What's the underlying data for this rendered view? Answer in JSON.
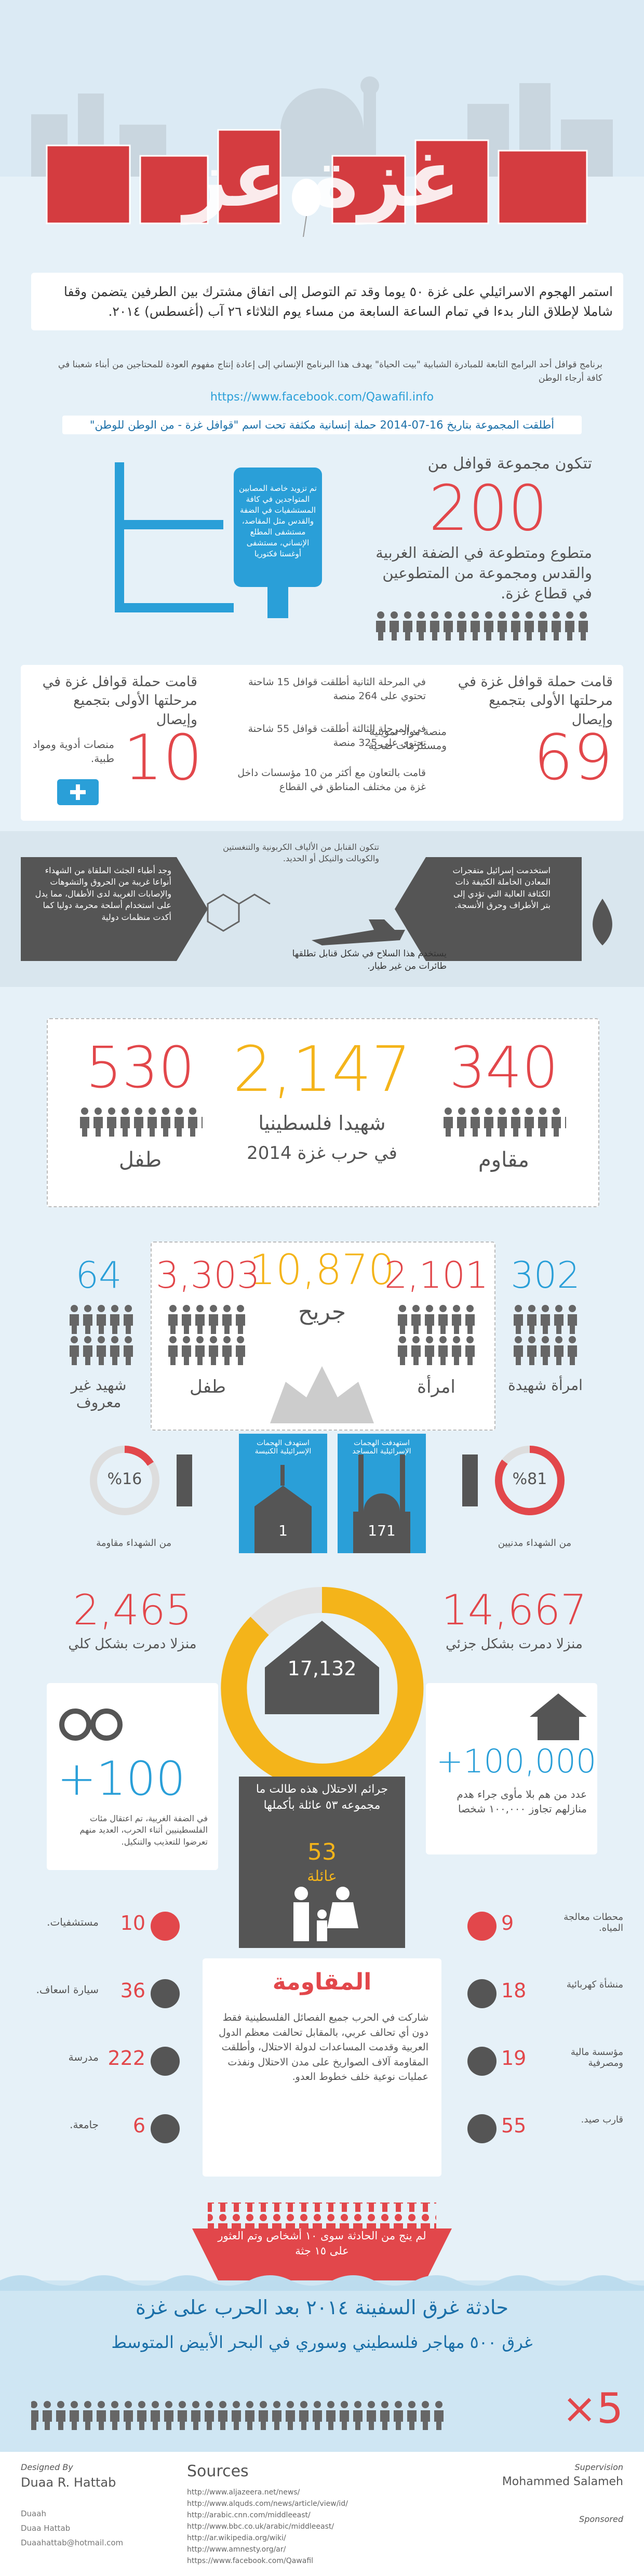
{
  "header": {
    "title": "غزة عز"
  },
  "intro": {
    "text": "استمر الهجوم الاسرائيلي على غزة ٥٠ يوما وقد تم التوصل إلى اتفاق مشترك بين الطرفين يتضمن وقفا شاملا لإطلاق النار بدءا في تمام الساعة السابعة من مساء يوم الثلاثاء ٢٦ آب (أغسطس) ٢٠١٤.",
    "program": "برنامج قوافل أحد البرامج التابعة للمبادرة الشبابية \"بيت الحياة\" يهدف هذا البرنامج الإنساني إلى إعادة إنتاج مفهوم العودة للمحتاجين من أبناء شعبنا في كافة أرجاء الوطن",
    "link": "https://www.facebook.com/Qawafil.info"
  },
  "campaign": {
    "text": "أطلقت المجموعة بتاريخ 16-07-2014 حملة إنسانية مكثفة تحت اسم \"قوافل غزة - من الوطن للوطن\""
  },
  "volunteers": {
    "lead": "تتكون مجموعة قوافل من",
    "number": "200",
    "text": "متطوع ومتطوعة في الضفة الغربية والقدس ومجموعة من المتطوعين في قطاع غزة.",
    "hospitals": "تم تزويد خاصة المصابين المتواجدين في كافة المستشفيات في الضفة والقدس مثل المقاصد، مستشفى المطلع الإنساني، مستشفى أوغستا فكتوريا"
  },
  "aid": {
    "right": {
      "lead": "قامت حملة قوافل غزة في مرحلتها الأولى بتجميع وإيصال",
      "number": "69",
      "text": "منصة مواد تموينية ومستلزمات صحية"
    },
    "left": {
      "lead": "قامت حملة قوافل غزة في مرحلتها الأولى بتجميع وإيصال",
      "number": "10",
      "text": "منصات أدوية ومواد طبية."
    },
    "phase2": "في المرحلة الثانية أطلقت قوافل 15 شاحنة تحتوي على 264 منصة",
    "phase3": "في المرحلة الثالثة أطلقت قوافل 55 شاحنة تحتوي على 325 منصة",
    "partners": "قامت بالتعاون مع أكثر من 10 مؤسسات داخل غزة من مختلف المناطق في القطاع"
  },
  "weapons": {
    "bodies": "وجد أطباء الجثث الملقاة من الشهداء أنواعا غريبة من الحروق والتشوهات والإصابات الغريبة لدى الأطفال، مما يدل على استخدام أسلحة محرمة دوليا كما أكدت منظمات دولية",
    "metals": "استخدمت إسرائيل متفجرات المعادن الخاملة الكثيفة ذات الكثافة العالية التي تؤدي إلى بتر الأطراف وحرق الأنسجة.",
    "composition": "تتكون القنابل من الألياف الكربونية والتنغستين والكوبالت والنيكل أو الحديد.",
    "drones": "يستخدم هذا السلاح في شكل قنابل تطلقها طائرات من غير طيار."
  },
  "martyrs": {
    "children": {
      "number": "530",
      "label": "طفل"
    },
    "total": {
      "number": "2,147",
      "label": "شهيدا فلسطينيا",
      "sub": "في حرب غزة 2014"
    },
    "fighters": {
      "number": "340",
      "label": "مقاوم"
    }
  },
  "wounded": {
    "unknown": {
      "number": "64",
      "label": "شهيد غير معروف"
    },
    "children": {
      "number": "3,303",
      "label": "طفل"
    },
    "total": {
      "number": "10,870",
      "label": "جريح"
    },
    "women": {
      "number": "2,101",
      "label": "امرأة"
    },
    "women_martyrs": {
      "number": "302",
      "label": "امرأة شهيدة"
    }
  },
  "percent": {
    "resistance": {
      "value": "%16",
      "label": "من الشهداء مقاومة"
    },
    "civilians": {
      "value": "%81",
      "label": "من الشهداء مدنيين"
    }
  },
  "worship": {
    "churches": {
      "label": "استهدف الهجمات الإسرائيلية الكنيسة",
      "number": "1"
    },
    "mosques": {
      "label": "استهدفت الهجمات الإسرائيلية المساجد",
      "number": "171"
    }
  },
  "homes": {
    "total": "17,132",
    "full": {
      "number": "2,465",
      "label": "منزلا دمرت بشكل كلي"
    },
    "partial": {
      "number": "14,667",
      "label": "منزلا دمرت بشكل جزئي"
    }
  },
  "prisoners": {
    "number": "+100",
    "text": "في الضفة الغربية، تم اعتقال مئات الفلسطينيين أثناء الحرب، العديد منهم تعرضوا للتعذيب والتنكيل."
  },
  "homeless": {
    "number": "+100,000",
    "text": "عدد من هم بلا مأوى جراء هدم منازلهم تجاوز ١٠٠,٠٠٠ شخصا"
  },
  "families": {
    "text": "جرائم الاحتلال هذه طالت ما مجموعه ٥٣ عائلة بأكملها",
    "number": "53",
    "unit": "عائلة"
  },
  "infrastructure": {
    "left": [
      {
        "number": "10",
        "label": "مستشفيات."
      },
      {
        "number": "36",
        "label": "سيارة اسعاف."
      },
      {
        "number": "222",
        "label": "مدرسة"
      },
      {
        "number": "6",
        "label": "جامعة."
      }
    ],
    "right": [
      {
        "number": "9",
        "label": "محطات معالجة المياه."
      },
      {
        "number": "18",
        "label": "منشأة كهربائية"
      },
      {
        "number": "19",
        "label": "مؤسسة مالية ومصرفية"
      },
      {
        "number": "55",
        "label": "قارب صيد."
      }
    ]
  },
  "resistance": {
    "title": "المقاومة",
    "text": "شاركت في الحرب جميع الفصائل الفلسطينية فقط دون أي تحالف عربي، بالمقابل تحالفت معظم الدول العربية وقدمت المساعدات لدولة الاحتلال، وأطلقت المقاومة آلاف الصواريخ على مدن الاحتلال ونفذت عمليات نوعية خلف خطوط العدو."
  },
  "sinking": {
    "survivors": "لم ينج من الحادثة سوى ١٠ أشخاص وتم العثور على ١٥ جثة",
    "title": "حادثة غرق السفينة ٢٠١٤ بعد الحرب على غزة",
    "subtitle": "غرق ٥٠٠ مهاجر فلسطيني وسوري في البحر الأبيض المتوسط",
    "multiplier": "×5"
  },
  "footer": {
    "designed_label": "Designed By",
    "designer": "Duaa R. Hattab",
    "contacts": [
      "Duaah",
      "Duaa Hattab",
      "Duaahattab@hotmail.com"
    ],
    "sources_title": "Sources",
    "sources": [
      "http://www.aljazeera.net/news/",
      "http://www.alquds.com/news/article/view/id/",
      "http://arabic.cnn.com/middleeast/",
      "http://www.bbc.co.uk/arabic/middleeast/",
      "http://ar.wikipedia.org/wiki/",
      "http://www.amnesty.org/ar/",
      "https://www.facebook.com/Qawafil"
    ],
    "supervision_label": "Supervision",
    "supervisor": "Mohammed Salameh",
    "sponsored_label": "Sponsored"
  }
}
